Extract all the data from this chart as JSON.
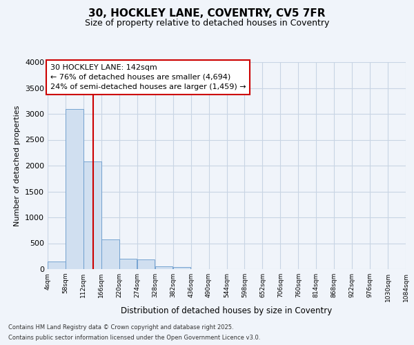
{
  "title_line1": "30, HOCKLEY LANE, COVENTRY, CV5 7FR",
  "title_line2": "Size of property relative to detached houses in Coventry",
  "xlabel": "Distribution of detached houses by size in Coventry",
  "ylabel": "Number of detached properties",
  "footer_line1": "Contains HM Land Registry data © Crown copyright and database right 2025.",
  "footer_line2": "Contains public sector information licensed under the Open Government Licence v3.0.",
  "annotation_line1": "30 HOCKLEY LANE: 142sqm",
  "annotation_line2": "← 76% of detached houses are smaller (4,694)",
  "annotation_line3": "24% of semi-detached houses are larger (1,459) →",
  "property_size": 142,
  "bar_color": "#d0dff0",
  "bar_edge_color": "#6699cc",
  "marker_color": "#cc0000",
  "grid_color": "#c8d4e4",
  "background_color": "#f0f4fa",
  "bin_edges": [
    4,
    58,
    112,
    166,
    220,
    274,
    328,
    382,
    436,
    490,
    544,
    598,
    652,
    706,
    760,
    814,
    868,
    922,
    976,
    1030,
    1084
  ],
  "bar_values": [
    150,
    3100,
    2080,
    580,
    200,
    185,
    60,
    45,
    0,
    0,
    0,
    0,
    0,
    0,
    0,
    0,
    0,
    0,
    0,
    0
  ],
  "ylim": [
    0,
    4000
  ],
  "yticks": [
    0,
    500,
    1000,
    1500,
    2000,
    2500,
    3000,
    3500,
    4000
  ]
}
